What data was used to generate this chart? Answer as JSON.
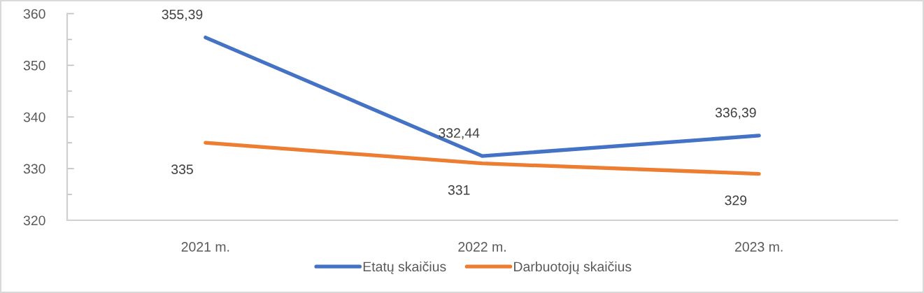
{
  "chart_data": {
    "type": "line",
    "categories": [
      "2021 m.",
      "2022 m.",
      "2023 m."
    ],
    "series": [
      {
        "name": "Etatų skaičius",
        "color": "#4472c4",
        "values": [
          355.39,
          332.44,
          336.39
        ],
        "value_labels": [
          "355,39",
          "332,44",
          "336,39"
        ]
      },
      {
        "name": "Darbuotojų skaičius",
        "color": "#ed7d31",
        "values": [
          335,
          331,
          329
        ],
        "value_labels": [
          "335",
          "331",
          "329"
        ]
      }
    ],
    "ylim": [
      320,
      360
    ],
    "yticks": [
      320,
      {
        "value": 325,
        "label": null
      },
      330,
      {
        "value": 335,
        "label": null
      },
      340,
      {
        "value": 345,
        "label": null
      },
      350,
      {
        "value": 355,
        "label": null
      },
      360
    ],
    "grid": false,
    "legend": "bottom",
    "line_style": "solid"
  }
}
